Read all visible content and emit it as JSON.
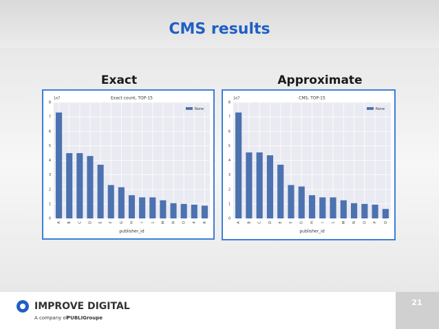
{
  "slide": {
    "title": "CMS results",
    "labels": [
      "Exact",
      "Approximate"
    ],
    "page_number": "21"
  },
  "footer": {
    "brand": "IMPROVE DIGITAL",
    "tagline": "A company of",
    "group": "PUBLIGroupe"
  },
  "chart_data": [
    {
      "type": "bar",
      "title": "Exact count, TOP-15",
      "offset_label": "1e7",
      "x_label": "publisher_id",
      "categories": [
        "A",
        "B",
        "C",
        "D",
        "E",
        "F",
        "G",
        "H",
        "I",
        "L",
        "M",
        "N",
        "O",
        "P",
        "R"
      ],
      "series": [
        {
          "name": "None",
          "color": "#4c72b0",
          "values": [
            7.3,
            4.5,
            4.5,
            4.3,
            3.7,
            2.3,
            2.15,
            1.6,
            1.45,
            1.45,
            1.25,
            1.05,
            1.0,
            0.95,
            0.88
          ]
        }
      ],
      "ylim": [
        0,
        8
      ],
      "yticks": [
        0,
        1,
        2,
        3,
        4,
        5,
        6,
        7,
        8
      ],
      "grid": true,
      "legend": "upper right"
    },
    {
      "type": "bar",
      "title": "CMS, TOP-15",
      "offset_label": "1e7",
      "x_label": "publisher_id",
      "categories": [
        "A",
        "B",
        "C",
        "D",
        "E",
        "F",
        "G",
        "H",
        "I",
        "L",
        "M",
        "N",
        "O",
        "P",
        "Q"
      ],
      "series": [
        {
          "name": "None",
          "color": "#4c72b0",
          "values": [
            7.3,
            4.55,
            4.55,
            4.35,
            3.7,
            2.3,
            2.2,
            1.6,
            1.45,
            1.45,
            1.25,
            1.05,
            1.0,
            0.95,
            0.65
          ]
        }
      ],
      "ylim": [
        0,
        8
      ],
      "yticks": [
        0,
        1,
        2,
        3,
        4,
        5,
        6,
        7,
        8
      ],
      "grid": true,
      "legend": "upper right"
    }
  ]
}
